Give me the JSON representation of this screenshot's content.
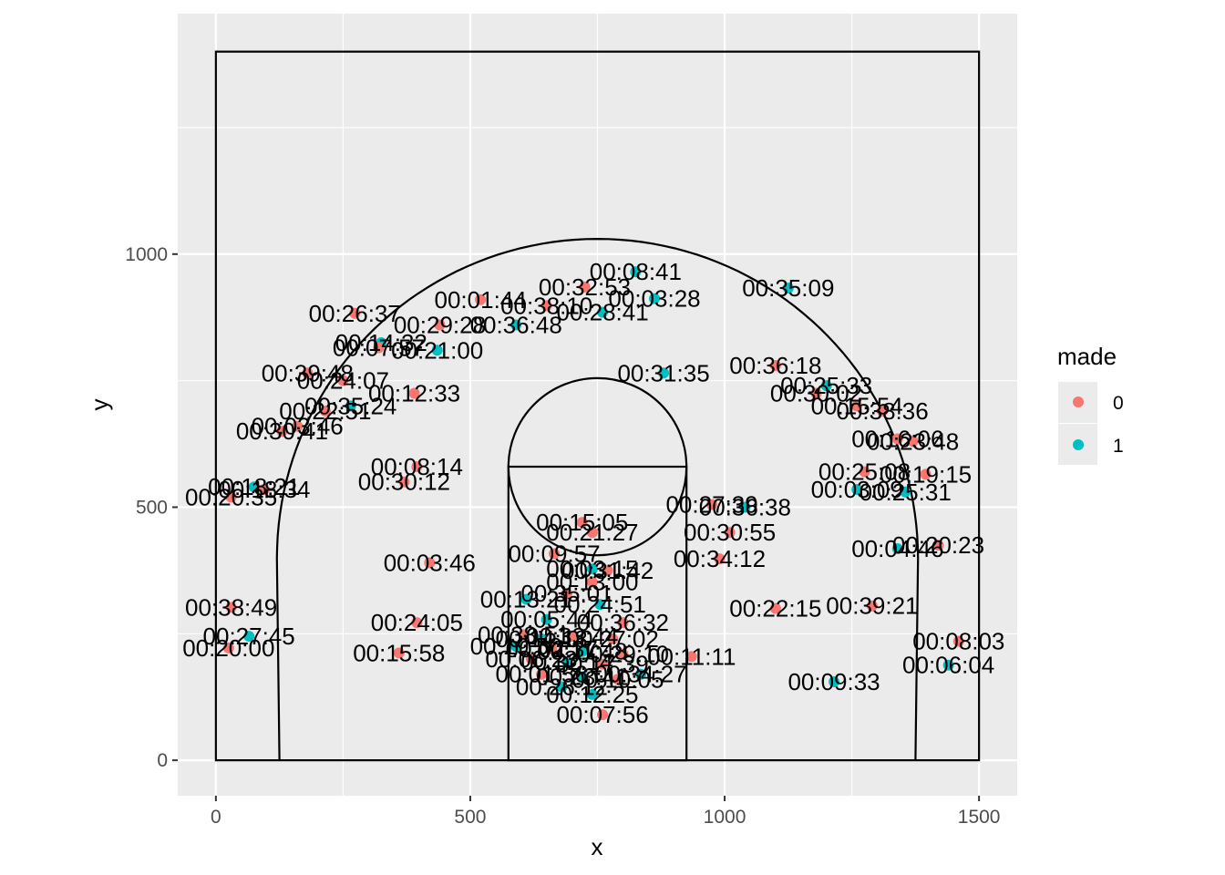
{
  "chart_data": {
    "type": "scatter",
    "xlabel": "x",
    "ylabel": "y",
    "xlim": [
      -75,
      1575
    ],
    "ylim": [
      -70,
      1475
    ],
    "x_ticks": [
      0,
      500,
      1000,
      1500
    ],
    "y_ticks": [
      0,
      500,
      1000
    ],
    "grid": true,
    "legend": {
      "title": "made",
      "position": "right",
      "entries": [
        {
          "label": "0",
          "color": "#F8766D"
        },
        {
          "label": "1",
          "color": "#00BFC4"
        }
      ]
    },
    "court": {
      "boundary": {
        "x": [
          0,
          1500
        ],
        "y": [
          0,
          1400
        ]
      },
      "lane": {
        "x": [
          575,
          925
        ],
        "y": [
          0,
          580
        ]
      },
      "free_throw_circle": {
        "cx": 750,
        "cy": 580,
        "r": 175
      },
      "three_point_arc": {
        "cx": 750,
        "cy": 400,
        "r": 630
      },
      "corner_lines_x": [
        125,
        1375
      ]
    },
    "points": [
      {
        "x": 1125,
        "y": 933,
        "made": 1,
        "label": "00:35:09"
      },
      {
        "x": 825,
        "y": 965,
        "made": 1,
        "label": "00:08:41"
      },
      {
        "x": 862,
        "y": 912,
        "made": 1,
        "label": "00:03:28"
      },
      {
        "x": 725,
        "y": 935,
        "made": 0,
        "label": "00:32:53"
      },
      {
        "x": 520,
        "y": 910,
        "made": 0,
        "label": "00:01:44"
      },
      {
        "x": 650,
        "y": 898,
        "made": 0,
        "label": "00:38:10"
      },
      {
        "x": 760,
        "y": 885,
        "made": 1,
        "label": "00:28:41"
      },
      {
        "x": 273,
        "y": 883,
        "made": 0,
        "label": "00:26:37"
      },
      {
        "x": 440,
        "y": 860,
        "made": 0,
        "label": "00:29:28"
      },
      {
        "x": 590,
        "y": 860,
        "made": 1,
        "label": "00:36:48"
      },
      {
        "x": 325,
        "y": 825,
        "made": 1,
        "label": "00:14:32"
      },
      {
        "x": 320,
        "y": 815,
        "made": 0,
        "label": "00:07:57"
      },
      {
        "x": 435,
        "y": 810,
        "made": 1,
        "label": "00:21:00"
      },
      {
        "x": 180,
        "y": 765,
        "made": 0,
        "label": "00:39:48"
      },
      {
        "x": 250,
        "y": 750,
        "made": 0,
        "label": "00:24:07"
      },
      {
        "x": 390,
        "y": 725,
        "made": 0,
        "label": "00:12:33"
      },
      {
        "x": 880,
        "y": 765,
        "made": 1,
        "label": "00:31:35"
      },
      {
        "x": 1100,
        "y": 780,
        "made": 0,
        "label": "00:36:18"
      },
      {
        "x": 1200,
        "y": 740,
        "made": 1,
        "label": "00:25:33"
      },
      {
        "x": 1180,
        "y": 725,
        "made": 0,
        "label": "00:30:02"
      },
      {
        "x": 1260,
        "y": 700,
        "made": 0,
        "label": "00:15:54"
      },
      {
        "x": 1310,
        "y": 690,
        "made": 0,
        "label": "00:38:36"
      },
      {
        "x": 265,
        "y": 700,
        "made": 1,
        "label": "00:35:24"
      },
      {
        "x": 215,
        "y": 690,
        "made": 0,
        "label": "00:22:51"
      },
      {
        "x": 160,
        "y": 660,
        "made": 0,
        "label": "00:03:46"
      },
      {
        "x": 130,
        "y": 650,
        "made": 0,
        "label": "00:30:41"
      },
      {
        "x": 1340,
        "y": 635,
        "made": 0,
        "label": "00:16:06"
      },
      {
        "x": 1370,
        "y": 630,
        "made": 0,
        "label": "00:23:48"
      },
      {
        "x": 395,
        "y": 580,
        "made": 0,
        "label": "00:08:14"
      },
      {
        "x": 370,
        "y": 550,
        "made": 0,
        "label": "00:30:12"
      },
      {
        "x": 1275,
        "y": 570,
        "made": 0,
        "label": "00:25:08"
      },
      {
        "x": 1395,
        "y": 565,
        "made": 0,
        "label": "00:19:15"
      },
      {
        "x": 1260,
        "y": 535,
        "made": 1,
        "label": "00:03:09"
      },
      {
        "x": 1355,
        "y": 530,
        "made": 1,
        "label": "00:25:31"
      },
      {
        "x": 75,
        "y": 540,
        "made": 1,
        "label": "00:18:21"
      },
      {
        "x": 95,
        "y": 535,
        "made": 0,
        "label": "00:18:34"
      },
      {
        "x": 30,
        "y": 520,
        "made": 0,
        "label": "00:20:35"
      },
      {
        "x": 1040,
        "y": 500,
        "made": 1,
        "label": "00:36:38"
      },
      {
        "x": 975,
        "y": 505,
        "made": 0,
        "label": "00:27:39"
      },
      {
        "x": 720,
        "y": 470,
        "made": 0,
        "label": "00:15:05"
      },
      {
        "x": 740,
        "y": 450,
        "made": 0,
        "label": "00:21:27"
      },
      {
        "x": 1010,
        "y": 450,
        "made": 0,
        "label": "00:30:55"
      },
      {
        "x": 665,
        "y": 408,
        "made": 0,
        "label": "00:09:57"
      },
      {
        "x": 990,
        "y": 398,
        "made": 0,
        "label": "00:34:12"
      },
      {
        "x": 420,
        "y": 390,
        "made": 0,
        "label": "00:03:46"
      },
      {
        "x": 1340,
        "y": 418,
        "made": 1,
        "label": "00:04:46"
      },
      {
        "x": 1420,
        "y": 425,
        "made": 0,
        "label": "00:20:23"
      },
      {
        "x": 740,
        "y": 378,
        "made": 1,
        "label": "00:03:15"
      },
      {
        "x": 770,
        "y": 375,
        "made": 0,
        "label": "00:31:42"
      },
      {
        "x": 740,
        "y": 352,
        "made": 0,
        "label": "00:13:00"
      },
      {
        "x": 690,
        "y": 330,
        "made": 0,
        "label": "00:35:01"
      },
      {
        "x": 610,
        "y": 318,
        "made": 1,
        "label": "00:13:21"
      },
      {
        "x": 755,
        "y": 308,
        "made": 1,
        "label": "00:24:51"
      },
      {
        "x": 30,
        "y": 302,
        "made": 0,
        "label": "00:38:49"
      },
      {
        "x": 1100,
        "y": 300,
        "made": 0,
        "label": "00:22:15"
      },
      {
        "x": 1290,
        "y": 305,
        "made": 0,
        "label": "00:39:21"
      },
      {
        "x": 650,
        "y": 278,
        "made": 1,
        "label": "00:05:44"
      },
      {
        "x": 800,
        "y": 272,
        "made": 0,
        "label": "00:36:32"
      },
      {
        "x": 395,
        "y": 272,
        "made": 0,
        "label": "00:24:05"
      },
      {
        "x": 65,
        "y": 245,
        "made": 1,
        "label": "00:27:45"
      },
      {
        "x": 25,
        "y": 222,
        "made": 0,
        "label": "00:20:00"
      },
      {
        "x": 1460,
        "y": 235,
        "made": 0,
        "label": "00:08:03"
      },
      {
        "x": 1440,
        "y": 188,
        "made": 1,
        "label": "00:06:04"
      },
      {
        "x": 360,
        "y": 212,
        "made": 0,
        "label": "00:15:58"
      },
      {
        "x": 935,
        "y": 205,
        "made": 0,
        "label": "00:11:11"
      },
      {
        "x": 1215,
        "y": 155,
        "made": 1,
        "label": "00:09:33"
      },
      {
        "x": 760,
        "y": 90,
        "made": 0,
        "label": "00:07:56"
      },
      {
        "x": 605,
        "y": 248,
        "made": 0,
        "label": "00:38:51"
      },
      {
        "x": 640,
        "y": 240,
        "made": 1,
        "label": "00:14:18"
      },
      {
        "x": 700,
        "y": 245,
        "made": 0,
        "label": "00:33:44"
      },
      {
        "x": 780,
        "y": 240,
        "made": 0,
        "label": "00:27:02"
      },
      {
        "x": 590,
        "y": 225,
        "made": 1,
        "label": "00:19:50"
      },
      {
        "x": 660,
        "y": 220,
        "made": 0,
        "label": "00:02:37"
      },
      {
        "x": 720,
        "y": 215,
        "made": 1,
        "label": "00:11:48"
      },
      {
        "x": 800,
        "y": 210,
        "made": 0,
        "label": "00:29:10"
      },
      {
        "x": 620,
        "y": 200,
        "made": 0,
        "label": "00:06:23"
      },
      {
        "x": 690,
        "y": 195,
        "made": 1,
        "label": "00:32:14"
      },
      {
        "x": 760,
        "y": 190,
        "made": 0,
        "label": "00:17:39"
      },
      {
        "x": 835,
        "y": 170,
        "made": 1,
        "label": "00:34:27"
      },
      {
        "x": 640,
        "y": 170,
        "made": 0,
        "label": "00:01:56"
      },
      {
        "x": 720,
        "y": 165,
        "made": 1,
        "label": "00:23:41"
      },
      {
        "x": 790,
        "y": 160,
        "made": 0,
        "label": "00:10:05"
      },
      {
        "x": 680,
        "y": 145,
        "made": 1,
        "label": "00:26:12"
      },
      {
        "x": 740,
        "y": 130,
        "made": 1,
        "label": "00:12:25"
      }
    ]
  }
}
